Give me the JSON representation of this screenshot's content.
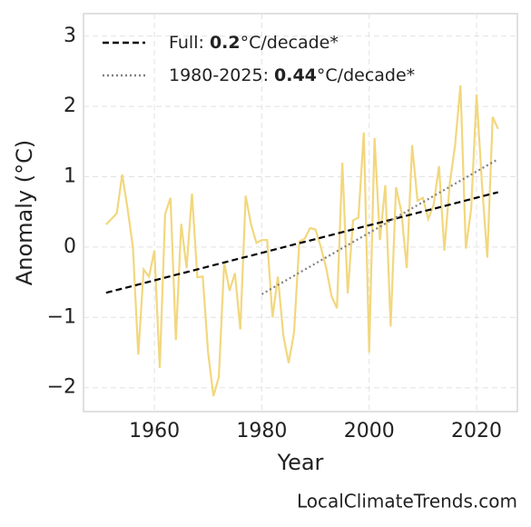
{
  "chart_data": {
    "type": "line",
    "xlabel": "Year",
    "ylabel": "Anomaly (°C)",
    "source": "LocalClimateTrends.com",
    "xlim": [
      1946.8,
      2027.6
    ],
    "ylim": [
      -2.34,
      3.32
    ],
    "xticks": [
      1960,
      1980,
      2000,
      2020
    ],
    "yticks": [
      {
        "value": -2,
        "label": "−2"
      },
      {
        "value": -1,
        "label": "−1"
      },
      0,
      1,
      2,
      3
    ],
    "grid": true,
    "legend": "upper left",
    "series": [
      {
        "color": "#f2d77e",
        "linestyle": "solid",
        "x": [
          1951,
          1952,
          1953,
          1954,
          1955,
          1956,
          1957,
          1958,
          1959,
          1960,
          1961,
          1962,
          1963,
          1964,
          1965,
          1966,
          1967,
          1968,
          1969,
          1970,
          1971,
          1972,
          1973,
          1974,
          1975,
          1976,
          1977,
          1978,
          1979,
          1980,
          1981,
          1982,
          1983,
          1984,
          1985,
          1986,
          1987,
          1988,
          1989,
          1990,
          1991,
          1992,
          1993,
          1994,
          1995,
          1996,
          1997,
          1998,
          1999,
          2000,
          2001,
          2002,
          2003,
          2004,
          2005,
          2006,
          2007,
          2008,
          2009,
          2010,
          2011,
          2012,
          2013,
          2014,
          2015,
          2016,
          2017,
          2018,
          2019,
          2020,
          2021,
          2022,
          2023,
          2024
        ],
        "values": [
          0.32,
          0.4,
          0.48,
          1.03,
          0.55,
          0.0,
          -1.53,
          -0.32,
          -0.42,
          -0.05,
          -1.72,
          0.47,
          0.7,
          -1.32,
          0.33,
          -0.3,
          0.76,
          -0.43,
          -0.42,
          -1.5,
          -2.12,
          -1.85,
          -0.22,
          -0.62,
          -0.37,
          -1.17,
          0.73,
          0.32,
          0.06,
          0.1,
          0.1,
          -1.0,
          -0.42,
          -1.25,
          -1.65,
          -1.22,
          0.08,
          0.12,
          0.27,
          0.25,
          0.0,
          -0.3,
          -0.7,
          -0.87,
          1.2,
          -0.66,
          0.38,
          0.42,
          1.63,
          -1.5,
          1.55,
          0.1,
          0.88,
          -1.13,
          0.85,
          0.5,
          -0.3,
          1.45,
          0.66,
          0.7,
          0.4,
          0.6,
          1.15,
          -0.05,
          0.9,
          1.45,
          2.3,
          -0.02,
          0.55,
          2.17,
          0.9,
          -0.15,
          1.85,
          1.68
        ]
      },
      {
        "name": "Full: 0.2°C/decade*",
        "bold": "0.2",
        "color": "#000000",
        "linestyle": "dashed",
        "x": [
          1951,
          2024
        ],
        "values": [
          -0.65,
          0.78
        ]
      },
      {
        "name": "1980-2025: 0.44°C/decade*",
        "bold": "0.44",
        "color": "#808080",
        "linestyle": "dotted",
        "x": [
          1980,
          2024
        ],
        "values": [
          -0.67,
          1.25
        ]
      }
    ]
  }
}
